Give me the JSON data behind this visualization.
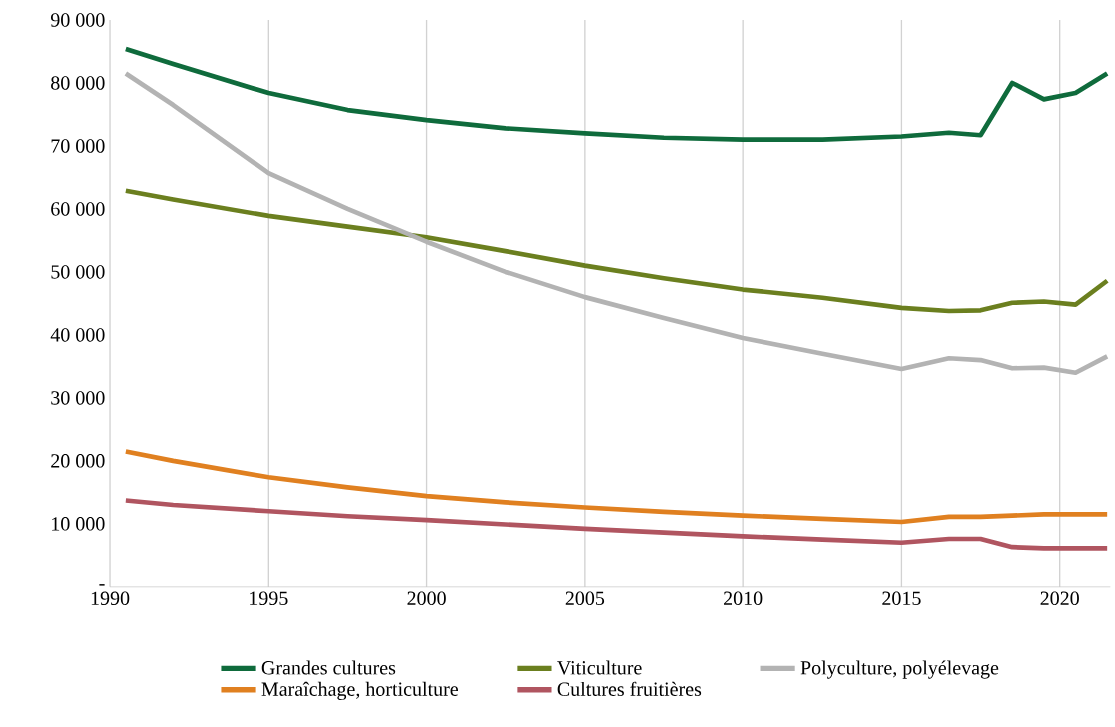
{
  "chart_data": {
    "type": "line",
    "x": [
      1990.5,
      1992,
      1995,
      1997.5,
      2000,
      2002.5,
      2005,
      2007.5,
      2010,
      2012.5,
      2015,
      2016.5,
      2017.5,
      2018.5,
      2019.5,
      2020.5,
      2021.5
    ],
    "series": [
      {
        "name": "Grandes cultures",
        "color": "#0f6b3c",
        "values": [
          85400,
          83000,
          78400,
          75700,
          74100,
          72800,
          72000,
          71300,
          71000,
          71000,
          71500,
          72100,
          71700,
          80000,
          77400,
          78400,
          81500
        ]
      },
      {
        "name": "Viticulture",
        "color": "#6b7f1f",
        "values": [
          62900,
          61500,
          58900,
          57200,
          55500,
          53300,
          51000,
          49000,
          47200,
          45900,
          44300,
          43800,
          43900,
          45100,
          45300,
          44800,
          48600
        ]
      },
      {
        "name": "Polyculture, polyélevage",
        "color": "#b3b3b3",
        "values": [
          81500,
          76500,
          65700,
          60000,
          54800,
          50000,
          46000,
          42700,
          39500,
          37000,
          34600,
          36300,
          36000,
          34700,
          34800,
          34000,
          36600
        ]
      },
      {
        "name": "Maraîchage, horticulture",
        "color": "#e08020",
        "values": [
          21500,
          20000,
          17400,
          15800,
          14400,
          13400,
          12600,
          11900,
          11300,
          10800,
          10300,
          11100,
          11100,
          11300,
          11500,
          11500,
          11500
        ]
      },
      {
        "name": "Cultures fruitières",
        "color": "#b05560",
        "values": [
          13700,
          13000,
          12000,
          11200,
          10600,
          9900,
          9200,
          8600,
          8000,
          7500,
          7000,
          7600,
          7600,
          6300,
          6100,
          6100,
          6100
        ]
      }
    ],
    "xlim": [
      1990,
      2021.6
    ],
    "xticks": [
      1990,
      1995,
      2000,
      2005,
      2010,
      2015,
      2020
    ],
    "ylim": [
      0,
      90000
    ],
    "yticks": [
      {
        "value": 0,
        "label": "-"
      },
      {
        "value": 10000,
        "label": "10 000"
      },
      {
        "value": 20000,
        "label": "20 000"
      },
      {
        "value": 30000,
        "label": "30 000"
      },
      {
        "value": 40000,
        "label": "40 000"
      },
      {
        "value": 50000,
        "label": "50 000"
      },
      {
        "value": 60000,
        "label": "60 000"
      },
      {
        "value": 70000,
        "label": "70 000"
      },
      {
        "value": 80000,
        "label": "80 000"
      },
      {
        "value": 90000,
        "label": "90 000"
      }
    ],
    "grid": "x",
    "legend": "bottom",
    "marker": "none",
    "line_style": "solid"
  }
}
